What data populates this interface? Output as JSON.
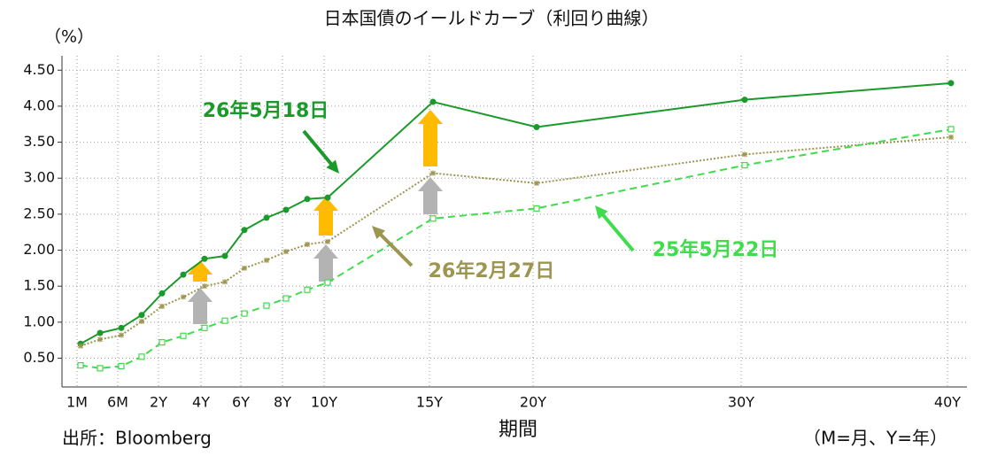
{
  "chart_data": {
    "type": "line",
    "title": "日本国債のイールドカーブ（利回り曲線）",
    "y_unit": "（%）",
    "x_label": "期間",
    "source": "出所：Bloomberg",
    "note": "（M=月、Y=年）",
    "categories": [
      "1M",
      null,
      "6M",
      null,
      "2Y",
      null,
      "4Y",
      null,
      "6Y",
      null,
      "8Y",
      null,
      "10Y",
      "15Y",
      "20Y",
      "30Y",
      "40Y"
    ],
    "ylim": [
      0.1,
      4.7
    ],
    "yticks": [
      {
        "value": 0.5,
        "label": "0.50"
      },
      {
        "value": 1,
        "label": "1.00"
      },
      {
        "value": 1.5,
        "label": "1.50"
      },
      {
        "value": 2,
        "label": "2.00"
      },
      {
        "value": 2.5,
        "label": "2.50"
      },
      {
        "value": 3,
        "label": "3.00"
      },
      {
        "value": 3.5,
        "label": "3.50"
      },
      {
        "value": 4,
        "label": "4.00"
      },
      {
        "value": 4.5,
        "label": "4.50"
      }
    ],
    "grid": true,
    "series": [
      {
        "name": "26年5月18日",
        "color": "#1a9a2a",
        "style": "solid",
        "marker": "circle",
        "values": [
          0.7,
          0.85,
          0.92,
          1.1,
          1.4,
          1.66,
          1.88,
          1.92,
          2.28,
          2.45,
          2.56,
          2.71,
          2.73,
          4.06,
          3.71,
          4.09,
          4.32
        ]
      },
      {
        "name": "26年2月27日",
        "color": "#9c9650",
        "style": "dotted",
        "marker": "star",
        "values": [
          0.67,
          0.76,
          0.82,
          1.01,
          1.22,
          1.35,
          1.5,
          1.56,
          1.75,
          1.86,
          1.98,
          2.08,
          2.12,
          3.07,
          2.93,
          3.33,
          3.57
        ]
      },
      {
        "name": "25年5月22日",
        "color": "#3fdc4c",
        "style": "dashed",
        "marker": "square",
        "values": [
          0.4,
          0.36,
          0.39,
          0.52,
          0.72,
          0.81,
          0.92,
          1.02,
          1.12,
          1.23,
          1.33,
          1.45,
          1.55,
          2.44,
          2.58,
          3.18,
          3.68
        ]
      }
    ]
  }
}
